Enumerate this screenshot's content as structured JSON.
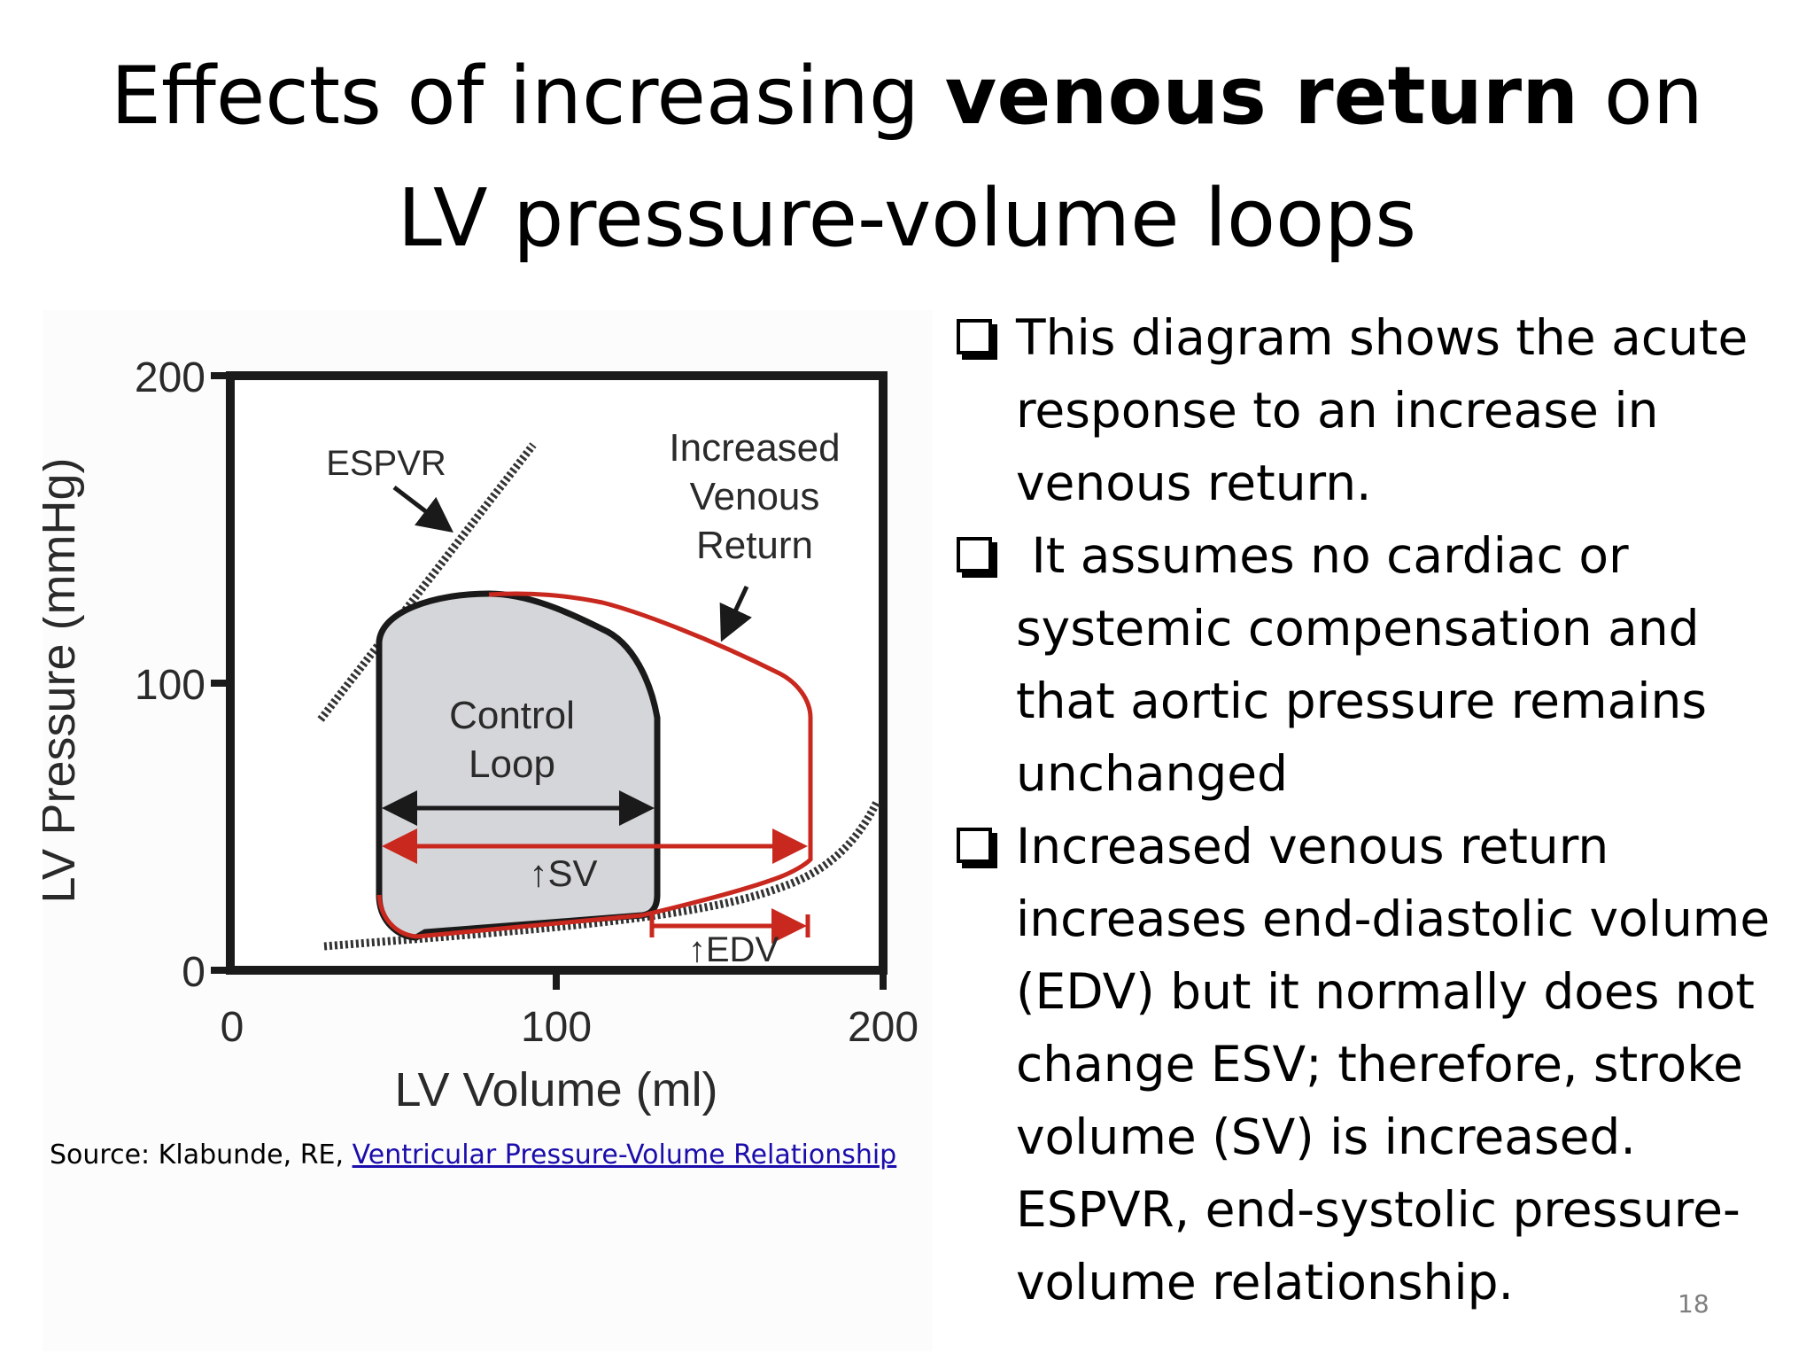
{
  "title": {
    "part1": "Effects of increasing ",
    "bold": "venous return",
    "part2": " on",
    "line2": "LV pressure-volume loops"
  },
  "diagram": {
    "y_axis_label": "LV Pressure (mmHg)",
    "x_axis_label": "LV Volume (ml)",
    "y_ticks": [
      "200",
      "100",
      "0"
    ],
    "x_ticks": [
      "0",
      "100",
      "200"
    ],
    "espvr_label": "ESPVR",
    "increased_label": [
      "Increased",
      "Venous",
      "Return"
    ],
    "control_label": [
      "Control",
      "Loop"
    ],
    "sv_label": "↑SV",
    "edv_label": "↑EDV",
    "colors": {
      "control": "#1a1a1a",
      "increased": "#c8281e",
      "loop_fill": "#d5d6d9"
    }
  },
  "source": {
    "prefix": "Source: Klabunde, RE, ",
    "link_text": "Ventricular Pressure-Volume Relationship"
  },
  "bullets": [
    "This diagram shows the acute response to an increase in venous return.",
    " It assumes no cardiac or systemic compensation and that aortic pressure remains unchanged",
    "Increased venous return increases end-diastolic volume (EDV) but it normally does not change ESV; therefore, stroke volume (SV) is increased. ESPVR, end-systolic pressure-volume relationship."
  ],
  "page_number": "18"
}
